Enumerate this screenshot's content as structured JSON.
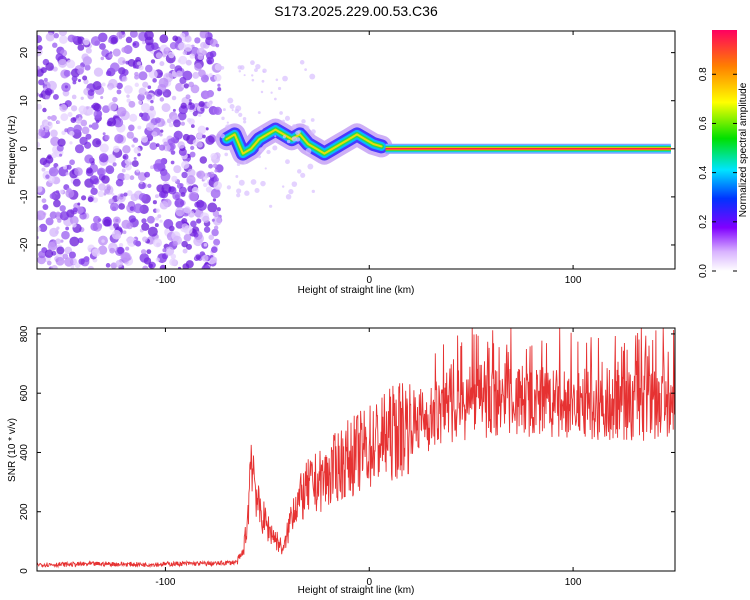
{
  "title": "S173.2025.229.00.53.C36",
  "chart_data": [
    {
      "type": "heatmap",
      "xlabel": "Height of straight line (km)",
      "ylabel": "Frequency (Hz)",
      "xlim": [
        -163,
        150
      ],
      "ylim": [
        -25,
        24.5
      ],
      "xticks": [
        -100,
        0,
        100
      ],
      "yticks": [
        -20,
        -10,
        0,
        10,
        20
      ],
      "colorbar": {
        "label": "Normalized spectral amplitude",
        "range": [
          0,
          0.98
        ],
        "ticks": [
          0,
          0.2,
          0.4,
          0.6,
          0.8
        ]
      },
      "regions": {
        "noise_x": [
          -163,
          -73
        ],
        "transition_x": [
          -73,
          8
        ],
        "tone_x": [
          8,
          148
        ],
        "tone_frequency": 0
      },
      "ridge": {
        "x": [
          -70,
          -66,
          -62,
          -58,
          -54,
          -50,
          -46,
          -42,
          -38,
          -34,
          -30,
          -26,
          -22,
          -18,
          -14,
          -10,
          -6,
          -2,
          2,
          6
        ],
        "y": [
          2,
          3,
          -1,
          0,
          2,
          3,
          4,
          3,
          2,
          3,
          1,
          0,
          -1,
          0,
          1,
          2,
          3,
          2,
          1,
          0.5
        ]
      }
    },
    {
      "type": "line",
      "xlabel": "Height of straight line (km)",
      "ylabel": "SNR (10 * v/v)",
      "xlim": [
        -163,
        150
      ],
      "ylim": [
        0,
        820
      ],
      "xticks": [
        -100,
        0,
        100
      ],
      "yticks": [
        0,
        200,
        400,
        600,
        800
      ],
      "series": [
        {
          "color": "#e63232",
          "x": [
            -163,
            -150,
            -130,
            -110,
            -90,
            -75,
            -65,
            -62,
            -60,
            -59,
            -58,
            -56,
            -54,
            -52,
            -50,
            -48,
            -46,
            -44,
            -42,
            -40,
            -38,
            -36,
            -34,
            -32,
            -30,
            -28,
            -25,
            -20,
            -15,
            -10,
            -5,
            0,
            5,
            10,
            15,
            20,
            25,
            30,
            35,
            40,
            45,
            50,
            60,
            70,
            80,
            90,
            100,
            110,
            120,
            130,
            140,
            150
          ],
          "y": [
            22,
            22,
            24,
            22,
            25,
            25,
            30,
            60,
            150,
            250,
            420,
            300,
            200,
            180,
            150,
            130,
            110,
            90,
            70,
            130,
            200,
            230,
            240,
            260,
            280,
            290,
            300,
            320,
            360,
            380,
            400,
            420,
            440,
            460,
            480,
            500,
            510,
            520,
            540,
            555,
            560,
            570,
            575,
            580,
            570,
            560,
            560,
            565,
            565,
            560,
            560,
            580
          ]
        }
      ]
    }
  ]
}
